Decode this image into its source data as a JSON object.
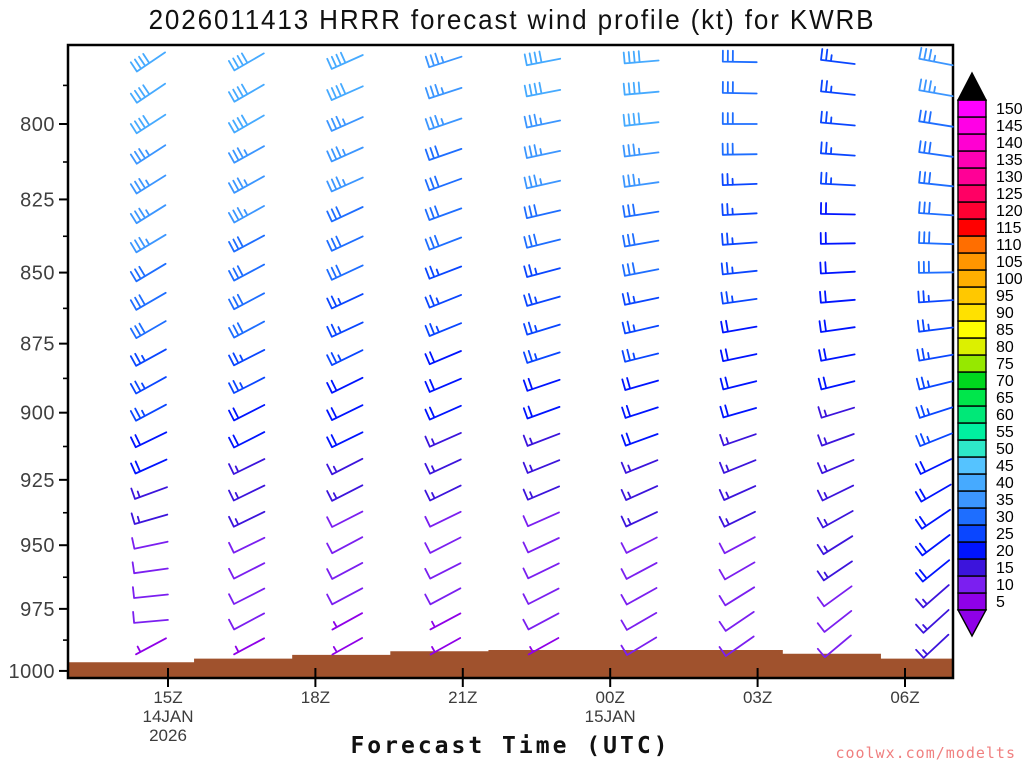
{
  "title": "2026011413 HRRR forecast wind profile (kt) for KWRB",
  "xlabel": "Forecast Time (UTC)",
  "watermark": "coolwx.com/modelts",
  "chart_data": {
    "type": "wind-barb-profile",
    "model": "HRRR",
    "init_time": "2026011413",
    "station": "KWRB",
    "units": "kt",
    "y_axis": {
      "scale": "log-pressure",
      "major_ticks_hpa": [
        800,
        825,
        850,
        875,
        900,
        925,
        950,
        975,
        1000
      ],
      "minor_ticks_hpa": [
        787.5,
        812.5,
        837.5,
        862.5,
        887.5,
        912.5,
        937.5,
        962.5,
        987.5
      ]
    },
    "x_axis": {
      "ticks": [
        {
          "label": "15Z",
          "sub": [
            "14JAN",
            "2026"
          ]
        },
        {
          "label": "18Z",
          "sub": []
        },
        {
          "label": "21Z",
          "sub": []
        },
        {
          "label": "00Z",
          "sub": [
            "15JAN"
          ]
        },
        {
          "label": "03Z",
          "sub": []
        },
        {
          "label": "06Z",
          "sub": []
        }
      ]
    },
    "levels_hpa": [
      780,
      790,
      800,
      810,
      820,
      830,
      840,
      850,
      860,
      870,
      880,
      890,
      900,
      910,
      920,
      930,
      940,
      950,
      960,
      970,
      980,
      990
    ],
    "profiles": [
      {
        "speeds_kt": [
          40,
          40,
          40,
          35,
          35,
          35,
          35,
          30,
          30,
          30,
          25,
          25,
          25,
          20,
          20,
          15,
          15,
          10,
          10,
          10,
          10,
          5
        ],
        "dirs_deg": [
          236,
          236,
          237,
          237,
          238,
          238,
          239,
          239,
          240,
          240,
          241,
          241,
          242,
          244,
          246,
          250,
          254,
          258,
          262,
          264,
          265,
          242
        ]
      },
      {
        "speeds_kt": [
          40,
          40,
          40,
          35,
          35,
          35,
          30,
          30,
          30,
          30,
          25,
          25,
          20,
          20,
          15,
          15,
          15,
          10,
          10,
          10,
          10,
          5
        ],
        "dirs_deg": [
          240,
          240,
          240,
          241,
          241,
          241,
          242,
          242,
          242,
          242,
          243,
          243,
          243,
          243,
          244,
          244,
          244,
          244,
          243,
          243,
          242,
          242
        ]
      },
      {
        "speeds_kt": [
          40,
          40,
          35,
          35,
          35,
          30,
          30,
          30,
          25,
          25,
          25,
          20,
          20,
          20,
          15,
          15,
          10,
          10,
          10,
          10,
          5,
          5
        ],
        "dirs_deg": [
          246,
          246,
          246,
          246,
          246,
          245,
          245,
          245,
          245,
          245,
          244,
          244,
          244,
          244,
          243,
          243,
          243,
          242,
          242,
          242,
          241,
          241
        ]
      },
      {
        "speeds_kt": [
          35,
          35,
          35,
          30,
          30,
          30,
          30,
          25,
          25,
          25,
          20,
          20,
          20,
          15,
          15,
          15,
          10,
          10,
          10,
          10,
          5,
          5
        ],
        "dirs_deg": [
          252,
          252,
          251,
          251,
          250,
          250,
          249,
          249,
          248,
          248,
          247,
          247,
          246,
          246,
          245,
          244,
          244,
          243,
          243,
          242,
          242,
          241
        ]
      },
      {
        "speeds_kt": [
          40,
          40,
          35,
          35,
          35,
          30,
          30,
          25,
          25,
          25,
          25,
          20,
          20,
          15,
          15,
          15,
          10,
          10,
          10,
          10,
          10,
          5
        ],
        "dirs_deg": [
          259,
          259,
          258,
          258,
          257,
          257,
          256,
          255,
          254,
          253,
          252,
          251,
          250,
          249,
          248,
          247,
          246,
          245,
          244,
          243,
          242,
          241
        ]
      },
      {
        "speeds_kt": [
          40,
          40,
          40,
          35,
          35,
          30,
          30,
          30,
          25,
          25,
          25,
          20,
          20,
          20,
          15,
          15,
          15,
          10,
          10,
          10,
          10,
          10
        ],
        "dirs_deg": [
          265,
          265,
          264,
          263,
          262,
          261,
          260,
          259,
          258,
          257,
          256,
          254,
          252,
          250,
          248,
          246,
          245,
          243,
          242,
          241,
          240,
          239
        ]
      },
      {
        "speeds_kt": [
          30,
          30,
          30,
          30,
          25,
          25,
          25,
          25,
          25,
          20,
          20,
          20,
          20,
          15,
          15,
          15,
          15,
          10,
          10,
          10,
          10,
          10
        ],
        "dirs_deg": [
          271,
          271,
          270,
          269,
          268,
          267,
          266,
          264,
          262,
          260,
          258,
          256,
          254,
          251,
          248,
          246,
          244,
          242,
          240,
          238,
          236,
          235
        ]
      },
      {
        "speeds_kt": [
          25,
          25,
          25,
          25,
          25,
          20,
          20,
          20,
          20,
          20,
          20,
          20,
          15,
          15,
          15,
          15,
          15,
          15,
          15,
          10,
          10,
          10
        ],
        "dirs_deg": [
          277,
          276,
          275,
          274,
          273,
          271,
          269,
          267,
          265,
          262,
          259,
          256,
          253,
          250,
          247,
          244,
          241,
          238,
          236,
          234,
          232,
          230
        ]
      },
      {
        "speeds_kt": [
          35,
          35,
          30,
          30,
          30,
          30,
          30,
          30,
          25,
          25,
          25,
          25,
          25,
          25,
          20,
          20,
          20,
          20,
          20,
          15,
          15,
          15
        ],
        "dirs_deg": [
          281,
          280,
          279,
          278,
          276,
          274,
          272,
          269,
          266,
          263,
          260,
          256,
          252,
          248,
          244,
          240,
          236,
          233,
          231,
          229,
          228,
          227
        ]
      }
    ],
    "surface_pressure_hpa": [
      996.5,
      995,
      993.5,
      992,
      991.5,
      991.5,
      991.5,
      993,
      995
    ],
    "terrain_color": "#a0522d",
    "colorbar": {
      "values": [
        5,
        10,
        15,
        20,
        25,
        30,
        35,
        40,
        45,
        50,
        55,
        60,
        65,
        70,
        75,
        80,
        85,
        90,
        95,
        100,
        105,
        110,
        115,
        120,
        125,
        130,
        135,
        140,
        145,
        150
      ],
      "colors": [
        "#8f00e8",
        "#7b1ff0",
        "#3c14dc",
        "#0014ff",
        "#0a46ff",
        "#1e6eff",
        "#3c96ff",
        "#46aaff",
        "#55c3ff",
        "#2ee8c8",
        "#00f0a0",
        "#00e878",
        "#00e64b",
        "#00d71e",
        "#96e800",
        "#dcf000",
        "#ffff00",
        "#ffe100",
        "#ffc800",
        "#ffaf00",
        "#ff9600",
        "#ff6e00",
        "#ff0000",
        "#ff0032",
        "#ff0064",
        "#ff0096",
        "#ff00b4",
        "#ff00d2",
        "#ff00e6",
        "#ff00ff"
      ],
      "over_arrow_color": "#000000",
      "under_arrow_color": "#8f00e8"
    }
  }
}
